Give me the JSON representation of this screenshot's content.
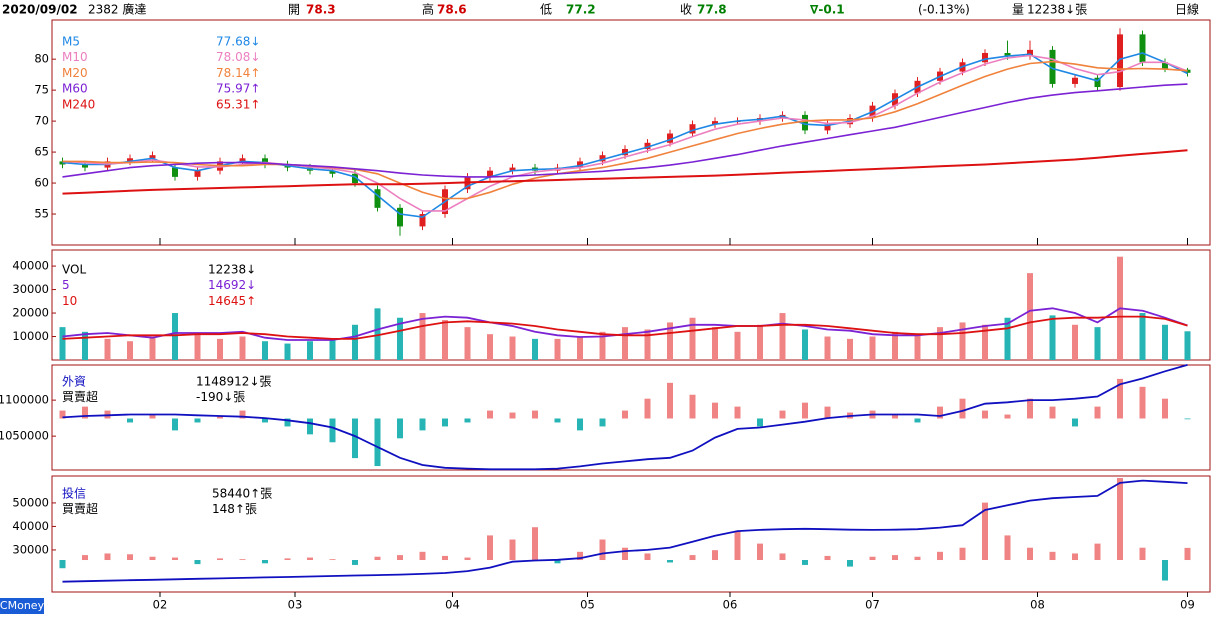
{
  "header": {
    "date": "2020/09/02",
    "stock": "2382 廣達",
    "open_label": "開",
    "open": "78.3",
    "high_label": "高",
    "high": "78.6",
    "low_label": "低",
    "low": "77.2",
    "close_label": "收",
    "close": "77.8",
    "change": "∇-0.1",
    "change_pct": "(-0.13%)",
    "volume_label": "量",
    "volume": "12238↓張",
    "period": "日線"
  },
  "brand": "CMoney",
  "chart_data": [
    {
      "type": "candlestick",
      "x": [
        0,
        3,
        6,
        9,
        12,
        15,
        18,
        21,
        24,
        27,
        30,
        33,
        36,
        39,
        42,
        45,
        48,
        51,
        54,
        57,
        60,
        63,
        66,
        69,
        72,
        75,
        78,
        81,
        84,
        87,
        90,
        93,
        96,
        99,
        102,
        105,
        108,
        111,
        114,
        117,
        120,
        123,
        126,
        129,
        132,
        135,
        138,
        141,
        144,
        147,
        150
      ],
      "xlim": [
        -1,
        153
      ],
      "xticks": [
        {
          "value": 13,
          "label": "02"
        },
        {
          "value": 31,
          "label": "03"
        },
        {
          "value": 52,
          "label": "04"
        },
        {
          "value": 70,
          "label": "05"
        },
        {
          "value": 89,
          "label": "06"
        },
        {
          "value": 108,
          "label": "07"
        },
        {
          "value": 130,
          "label": "08"
        },
        {
          "value": 150,
          "label": "09"
        }
      ],
      "ylim": [
        50,
        86
      ],
      "yticks": [
        55,
        60,
        65,
        70,
        75,
        80
      ],
      "up_color": "#e02020",
      "down_color": "#109010",
      "open": [
        63.5,
        63,
        62.5,
        63.5,
        64,
        62.5,
        61,
        62,
        63.5,
        64,
        63,
        62.5,
        62,
        61.5,
        59,
        56,
        53,
        55,
        59,
        61,
        62,
        62.5,
        62,
        62.5,
        63.5,
        64.5,
        65.5,
        66.5,
        68,
        69.5,
        70,
        70,
        70.5,
        71,
        68.5,
        69.5,
        70.5,
        72.5,
        74.5,
        76.5,
        78,
        79.5,
        81,
        80.5,
        81.5,
        76,
        77,
        75.5,
        84,
        79.5,
        78.3
      ],
      "high": [
        64.1,
        63.6,
        64.1,
        64.6,
        65.1,
        63.1,
        62.6,
        64.1,
        64.6,
        64.6,
        63.6,
        63.1,
        62.6,
        62.1,
        59.6,
        56.6,
        55.6,
        59.6,
        61.6,
        62.6,
        63.1,
        63.1,
        63.1,
        64.1,
        65.1,
        66.1,
        67.1,
        68.6,
        70.1,
        70.6,
        70.6,
        71.1,
        71.6,
        71.6,
        70.1,
        71.1,
        73.1,
        75.1,
        77.1,
        78.6,
        80.1,
        81.6,
        83,
        83,
        82.1,
        77.6,
        77.6,
        85,
        84.6,
        80.1,
        78.6
      ],
      "low": [
        62.4,
        61.9,
        61.9,
        62.9,
        63.4,
        60.4,
        60.4,
        61.4,
        62.9,
        62.4,
        61.9,
        61.4,
        60.9,
        59.4,
        55.4,
        51.5,
        52.4,
        54.4,
        58.4,
        60.4,
        61.4,
        61.4,
        61.4,
        61.9,
        62.9,
        63.9,
        64.9,
        65.9,
        67.4,
        68.9,
        69.4,
        69.4,
        69.9,
        67.9,
        67.9,
        68.9,
        69.9,
        71.9,
        73.9,
        75.9,
        77.4,
        78.9,
        79.9,
        79.9,
        75.4,
        75.4,
        74.9,
        74.9,
        78.9,
        77.9,
        77.2
      ],
      "close": [
        63,
        62.5,
        63.5,
        64,
        64.5,
        61,
        62,
        63.5,
        64,
        63,
        62.5,
        62,
        61.5,
        60,
        56,
        53,
        55,
        59,
        61,
        62,
        62.5,
        62,
        62.5,
        63.5,
        64.5,
        65.5,
        66.5,
        68,
        69.5,
        70,
        70,
        70.5,
        71,
        68.5,
        69.5,
        70.5,
        72.5,
        74.5,
        76.5,
        78,
        79.5,
        81,
        80.5,
        81.5,
        76,
        77,
        75.5,
        84,
        79.5,
        78.5,
        77.8
      ],
      "series": [
        {
          "name": "M5",
          "color": "#1e88e5",
          "value_label": "77.68↓",
          "values": [
            63.3,
            63,
            63,
            63.5,
            64,
            62.5,
            62,
            62.8,
            63.5,
            63.3,
            62.8,
            62.3,
            62,
            61,
            58,
            55,
            54.5,
            57,
            59.5,
            61,
            62,
            62.2,
            62.3,
            62.8,
            63.8,
            64.8,
            65.8,
            67,
            68.5,
            69.5,
            70,
            70.3,
            70.8,
            69.5,
            69.3,
            70,
            71.5,
            73.5,
            75.5,
            77.2,
            78.8,
            80,
            80.5,
            80.8,
            78.5,
            77.5,
            76.5,
            80,
            81,
            79.5,
            77.68
          ]
        },
        {
          "name": "M10",
          "color": "#ec7fbf",
          "value_label": "78.08↓",
          "values": [
            63.5,
            63.3,
            63.1,
            63.3,
            63.7,
            63.2,
            62.6,
            62.6,
            63,
            63.3,
            63,
            62.6,
            62.3,
            61.7,
            60,
            57.5,
            55.5,
            55.5,
            57.5,
            59.5,
            61,
            61.8,
            62.2,
            62.5,
            63.2,
            64.2,
            65.2,
            66.2,
            67.5,
            68.7,
            69.5,
            70,
            70.5,
            70.2,
            69.6,
            69.8,
            70.8,
            72.5,
            74.5,
            76.3,
            77.8,
            79.2,
            80.2,
            80.6,
            80,
            78.5,
            77.5,
            78,
            79.5,
            79.5,
            78.08
          ]
        },
        {
          "name": "M20",
          "color": "#f0823c",
          "value_label": "78.14↑",
          "values": [
            63.5,
            63.5,
            63.3,
            63.3,
            63.4,
            63.3,
            63,
            62.8,
            62.8,
            63,
            63,
            62.8,
            62.5,
            62.2,
            61.5,
            60,
            58.5,
            57.5,
            57.5,
            58.5,
            59.8,
            60.8,
            61.5,
            62,
            62.5,
            63.2,
            64,
            65,
            66,
            67,
            68,
            68.8,
            69.5,
            70,
            70.2,
            70.2,
            70.5,
            71.5,
            72.8,
            74.3,
            75.8,
            77.2,
            78.4,
            79.3,
            79.6,
            79.2,
            78.6,
            78.4,
            78.5,
            78.4,
            78.14
          ]
        },
        {
          "name": "M60",
          "color": "#7b22d4",
          "value_label": "75.97↑",
          "values": [
            61,
            61.5,
            62,
            62.5,
            62.8,
            63,
            63.2,
            63.3,
            63.3,
            63.2,
            63,
            62.8,
            62.6,
            62.3,
            62,
            61.6,
            61.3,
            61.1,
            61,
            61,
            61.1,
            61.3,
            61.5,
            61.7,
            61.9,
            62.2,
            62.5,
            62.9,
            63.4,
            64,
            64.6,
            65.3,
            66,
            66.6,
            67.2,
            67.8,
            68.4,
            69,
            69.8,
            70.6,
            71.4,
            72.2,
            73,
            73.7,
            74.2,
            74.6,
            74.9,
            75.2,
            75.5,
            75.8,
            75.97
          ]
        },
        {
          "name": "M240",
          "color": "#dd1111",
          "value_label": "65.31↑",
          "values": [
            58.3,
            58.45,
            58.6,
            58.75,
            58.9,
            59,
            59.1,
            59.2,
            59.3,
            59.4,
            59.5,
            59.6,
            59.7,
            59.8,
            59.8,
            59.8,
            59.9,
            60,
            60.1,
            60.2,
            60.3,
            60.4,
            60.5,
            60.6,
            60.7,
            60.8,
            60.9,
            61,
            61.1,
            61.2,
            61.35,
            61.5,
            61.65,
            61.8,
            61.95,
            62.1,
            62.25,
            62.4,
            62.55,
            62.7,
            62.85,
            63,
            63.2,
            63.4,
            63.6,
            63.8,
            64.1,
            64.4,
            64.7,
            65,
            65.31
          ]
        }
      ]
    },
    {
      "type": "combo",
      "ylim": [
        0,
        46000
      ],
      "yticks": [
        10000,
        20000,
        30000,
        40000
      ],
      "up_color": "#f08484",
      "down_color": "#26b4b4",
      "series": [
        {
          "name": "VOL",
          "kind": "bar",
          "color_by": "candle",
          "color": "#000000",
          "value_label": "12238↓",
          "values": [
            14000,
            12000,
            9000,
            8000,
            10000,
            20000,
            11000,
            9000,
            10000,
            8000,
            7000,
            8000,
            9000,
            15000,
            22000,
            18000,
            20000,
            17000,
            14000,
            11000,
            10000,
            9000,
            9000,
            10000,
            12000,
            14000,
            13000,
            16000,
            18000,
            14000,
            12000,
            15000,
            20000,
            13000,
            10000,
            9000,
            10000,
            12000,
            11000,
            14000,
            16000,
            15000,
            18000,
            37000,
            19000,
            15000,
            14000,
            44000,
            20000,
            15000,
            12238
          ]
        },
        {
          "name": "5",
          "kind": "line",
          "color": "#7b22d4",
          "value_label": "14692↓",
          "values": [
            10000,
            11000,
            11500,
            10500,
            9500,
            11500,
            11500,
            11500,
            12000,
            9500,
            8500,
            8500,
            8500,
            10000,
            13000,
            15500,
            17500,
            18500,
            18000,
            16000,
            14500,
            12000,
            10500,
            9800,
            10000,
            11000,
            12000,
            13500,
            15000,
            15000,
            14500,
            14500,
            15500,
            14500,
            13000,
            12500,
            11000,
            10500,
            10500,
            11500,
            13000,
            14500,
            15500,
            21000,
            22000,
            20000,
            16000,
            22000,
            21000,
            18000,
            14692
          ]
        },
        {
          "name": "10",
          "kind": "line",
          "color": "#dd1111",
          "value_label": "14645↑",
          "values": [
            9000,
            9500,
            10000,
            10500,
            10500,
            10500,
            11000,
            11000,
            11500,
            11000,
            10000,
            9500,
            9000,
            9000,
            10500,
            12500,
            14500,
            16000,
            16500,
            16000,
            15500,
            14500,
            13000,
            12000,
            11000,
            10500,
            10500,
            11500,
            12500,
            13500,
            14500,
            14500,
            15000,
            15000,
            14500,
            13500,
            12500,
            11500,
            11000,
            11000,
            11500,
            12500,
            13500,
            16000,
            17500,
            18000,
            18000,
            18500,
            18500,
            17500,
            14645
          ]
        }
      ]
    },
    {
      "type": "combo",
      "ylim": [
        1003000,
        1146000
      ],
      "yticks": [
        1050000,
        1100000
      ],
      "y2lim": [
        -13000,
        13000
      ],
      "up_color": "#f08484",
      "down_color": "#26b4b4",
      "series": [
        {
          "name": "外資",
          "kind": "line",
          "color": "#1010c0",
          "value_label": "1148912↓張",
          "values": [
            1076000,
            1078000,
            1079000,
            1080000,
            1080000,
            1080000,
            1079000,
            1078000,
            1077000,
            1075000,
            1072000,
            1068000,
            1062000,
            1050000,
            1035000,
            1020000,
            1010000,
            1006000,
            1005000,
            1004000,
            1004000,
            1004000,
            1005000,
            1008000,
            1012000,
            1015000,
            1018000,
            1020000,
            1030000,
            1048000,
            1060000,
            1062000,
            1066000,
            1070000,
            1075000,
            1078000,
            1080000,
            1080000,
            1080000,
            1078000,
            1085000,
            1095000,
            1097000,
            1100000,
            1100000,
            1102000,
            1105000,
            1122000,
            1130000,
            1140000,
            1148912
          ]
        },
        {
          "name": "買賣超",
          "kind": "bar",
          "axis": "y2",
          "color_by": "sign",
          "color": "#000000",
          "value_label": "-190↓張",
          "values": [
            2000,
            3000,
            2000,
            -1000,
            1000,
            -3000,
            -1000,
            500,
            2000,
            -1000,
            -2000,
            -4000,
            -6000,
            -10000,
            -12000,
            -5000,
            -3000,
            -2000,
            -1000,
            2000,
            1500,
            2000,
            -1000,
            -3000,
            -2000,
            2000,
            5000,
            9000,
            6000,
            4000,
            3000,
            -2000,
            2000,
            4000,
            3000,
            1500,
            2000,
            1000,
            -1000,
            3000,
            5000,
            2000,
            1000,
            5000,
            3000,
            -2000,
            3000,
            10000,
            8000,
            5000,
            -190
          ]
        }
      ]
    },
    {
      "type": "combo",
      "ylim": [
        12100,
        60600
      ],
      "yticks": [
        30000,
        40000,
        50000
      ],
      "y2lim": [
        -390,
        1000
      ],
      "up_color": "#f08484",
      "down_color": "#26b4b4",
      "series": [
        {
          "name": "投信",
          "kind": "line",
          "color": "#1010c0",
          "value_label": "58440↑張",
          "values": [
            16500,
            16700,
            16900,
            17100,
            17300,
            17500,
            17700,
            17900,
            18100,
            18300,
            18500,
            18700,
            18900,
            19100,
            19300,
            19500,
            19800,
            20200,
            21000,
            22500,
            25000,
            25500,
            25800,
            26500,
            28500,
            29500,
            30000,
            31000,
            33500,
            36000,
            38000,
            38500,
            38800,
            39000,
            38800,
            38600,
            38500,
            38600,
            38800,
            39500,
            40500,
            47000,
            49000,
            51000,
            52000,
            52500,
            53000,
            58500,
            59500,
            59000,
            58440
          ]
        },
        {
          "name": "買賣超",
          "kind": "bar",
          "axis": "y2",
          "color_by": "sign",
          "color": "#000000",
          "value_label": "148↑張",
          "values": [
            -100,
            60,
            80,
            70,
            40,
            30,
            -50,
            20,
            10,
            -40,
            20,
            30,
            10,
            -60,
            40,
            60,
            100,
            50,
            30,
            300,
            250,
            400,
            -40,
            100,
            250,
            150,
            80,
            -30,
            60,
            120,
            350,
            200,
            80,
            -60,
            50,
            -80,
            40,
            60,
            40,
            100,
            150,
            700,
            300,
            150,
            100,
            80,
            200,
            1000,
            150,
            -250,
            148
          ]
        }
      ]
    }
  ]
}
